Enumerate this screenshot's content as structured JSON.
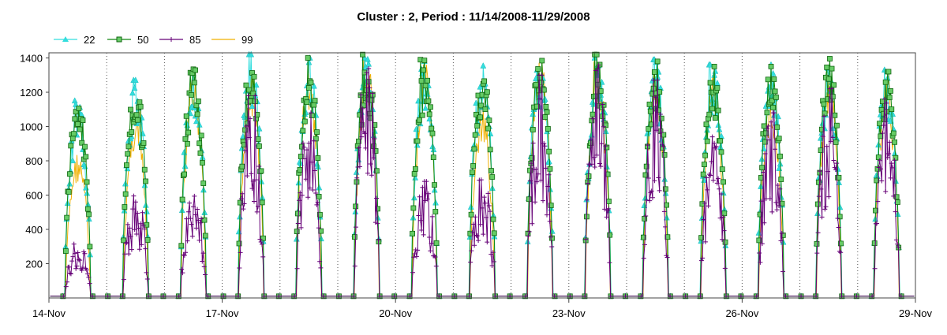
{
  "chart_data": {
    "type": "line",
    "title": "Cluster : 2, Period : 11/14/2008-11/29/2008",
    "xlabel": "",
    "ylabel": "",
    "x_range": [
      "2008-11-14",
      "2008-11-29"
    ],
    "ylim": [
      0,
      1430
    ],
    "y_ticks": [
      200,
      400,
      600,
      800,
      1000,
      1200,
      1400
    ],
    "x_ticks": [
      {
        "date": "2008-11-14",
        "label": "14-Nov"
      },
      {
        "date": "2008-11-17",
        "label": "17-Nov"
      },
      {
        "date": "2008-11-20",
        "label": "20-Nov"
      },
      {
        "date": "2008-11-23",
        "label": "23-Nov"
      },
      {
        "date": "2008-11-26",
        "label": "26-Nov"
      },
      {
        "date": "2008-11-29",
        "label": "29-Nov"
      }
    ],
    "grid": "vertical dotted lines at each day",
    "legend_position": "top-left",
    "daily_peaks_by_date": [
      "2008-11-14",
      "2008-11-15",
      "2008-11-16",
      "2008-11-17",
      "2008-11-18",
      "2008-11-19",
      "2008-11-20",
      "2008-11-21",
      "2008-11-22",
      "2008-11-23",
      "2008-11-24",
      "2008-11-25",
      "2008-11-26",
      "2008-11-27",
      "2008-11-28"
    ],
    "series": [
      {
        "name": "22",
        "color": "#33dddd",
        "marker": "triangle",
        "daily_peak": [
          1150,
          1270,
          1350,
          1420,
          1400,
          1400,
          1390,
          1380,
          1420,
          1400,
          1390,
          1360,
          1360,
          1340,
          1330
        ]
      },
      {
        "name": "50",
        "color": "#118811",
        "marker": "square",
        "daily_peak": [
          1190,
          1270,
          1370,
          1400,
          1400,
          1420,
          1390,
          1370,
          1430,
          1420,
          1380,
          1350,
          1350,
          1420,
          1320
        ]
      },
      {
        "name": "85",
        "color": "#660077",
        "marker": "plus",
        "daily_peak": [
          340,
          650,
          660,
          1180,
          1080,
          1430,
          680,
          780,
          1300,
          1370,
          1270,
          940,
          1080,
          1220,
          1160
        ]
      },
      {
        "name": "99",
        "color": "#f0b000",
        "marker": "none",
        "daily_peak": [
          860,
          1100,
          1270,
          1320,
          1350,
          1420,
          1360,
          1100,
          1420,
          1380,
          1350,
          1300,
          1200,
          1300,
          1300
        ]
      }
    ]
  }
}
